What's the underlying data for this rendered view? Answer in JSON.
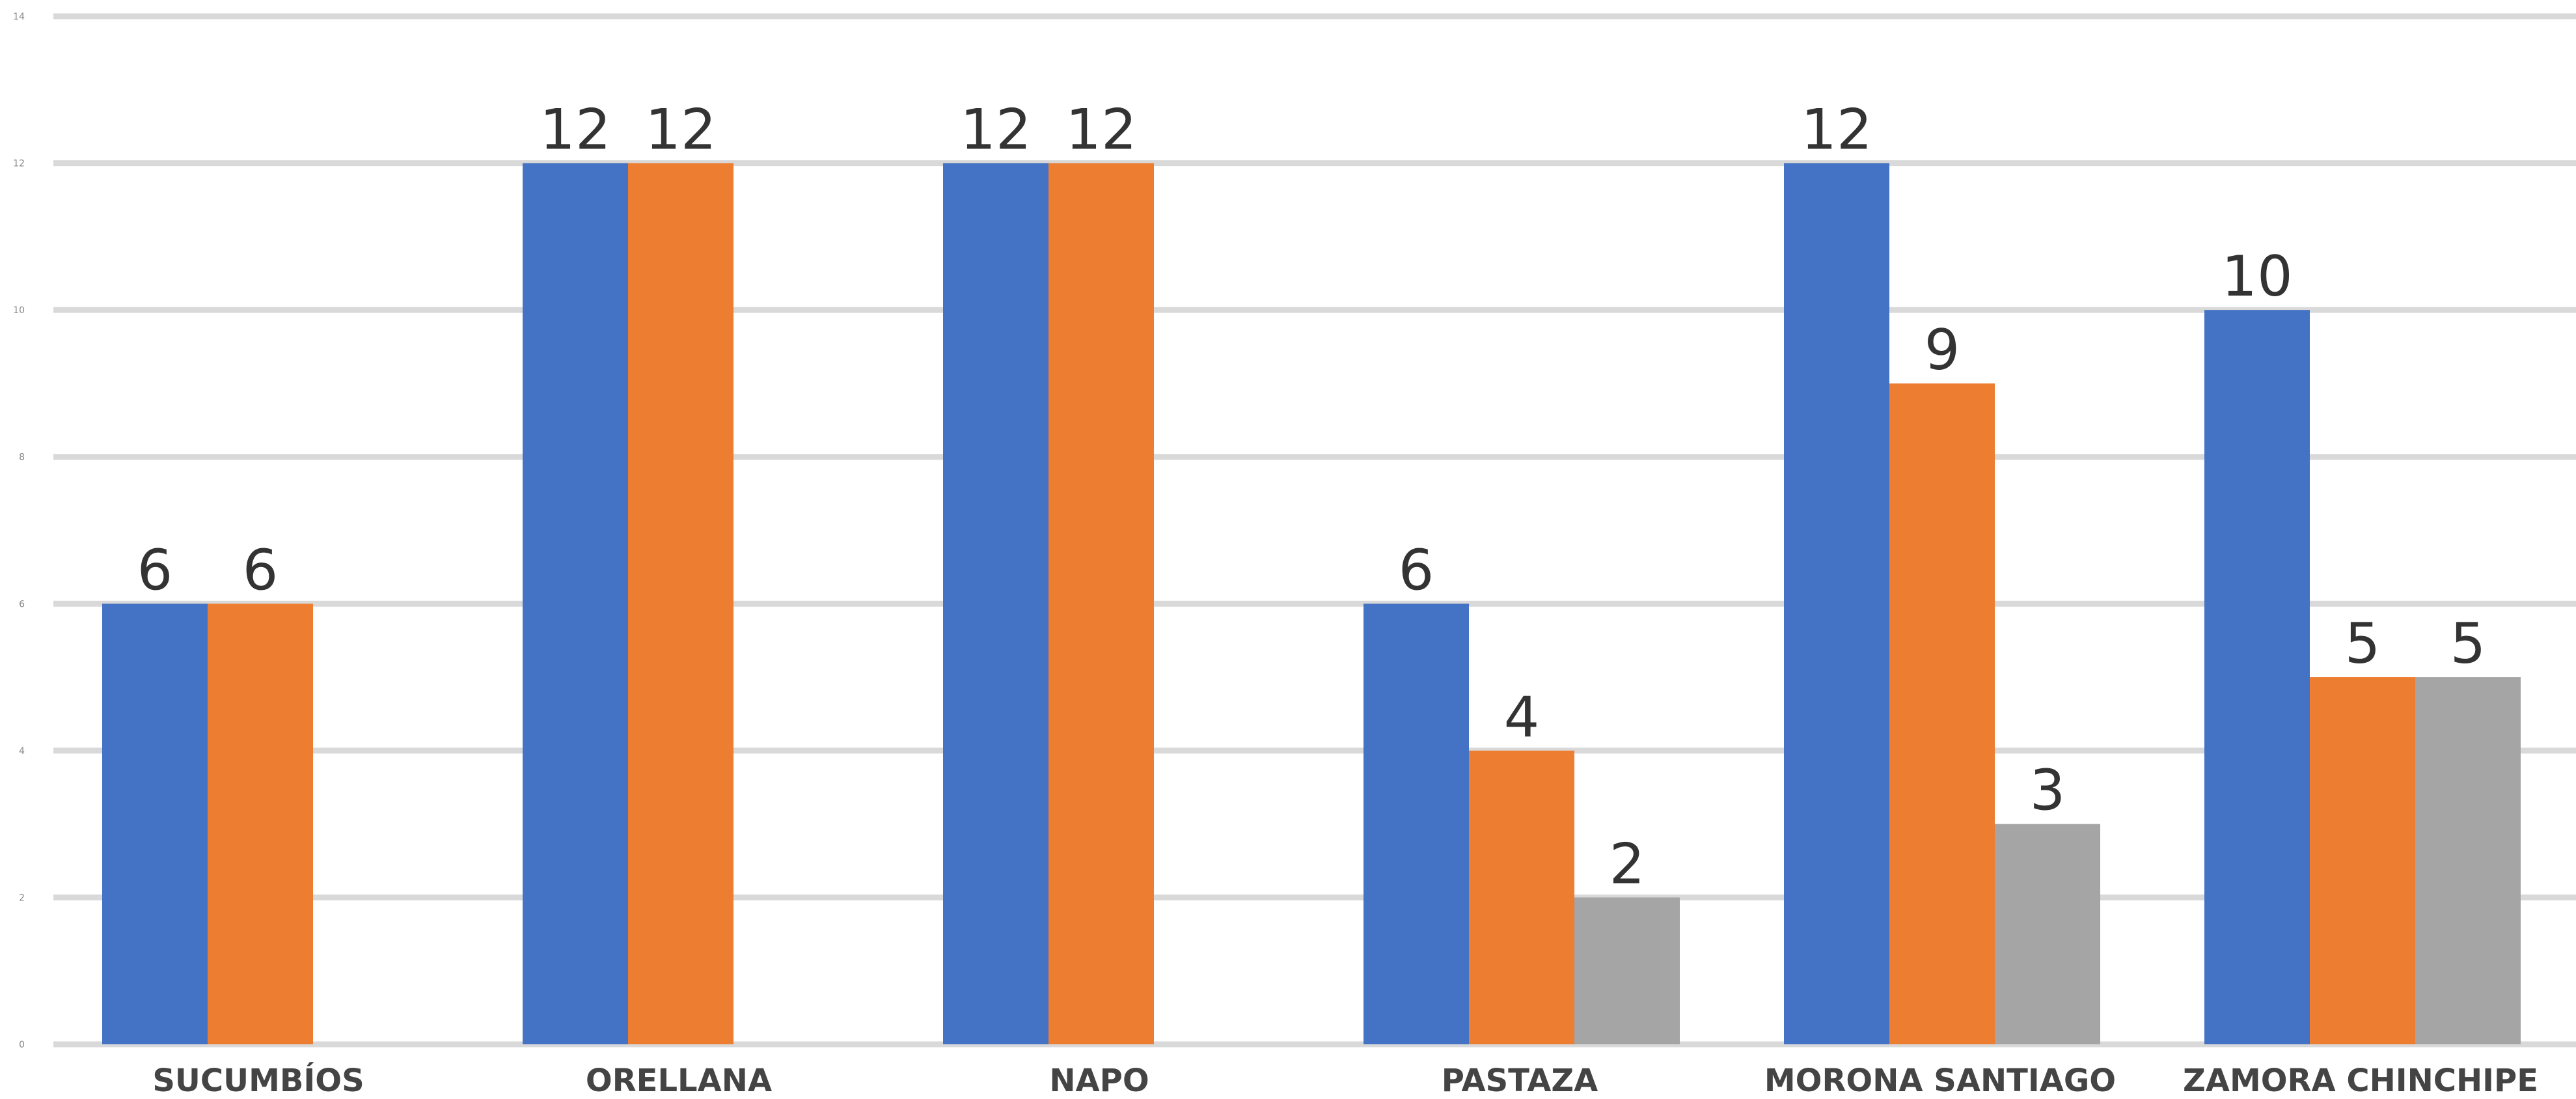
{
  "chart_data": {
    "type": "bar",
    "categories": [
      "SUCUMBÍOS",
      "ORELLANA",
      "NAPO",
      "PASTAZA",
      "MORONA SANTIAGO",
      "ZAMORA CHINCHIPE"
    ],
    "series": [
      {
        "color": "#4472c4",
        "values": [
          6,
          12,
          12,
          6,
          12,
          10
        ]
      },
      {
        "color": "#ed7d31",
        "values": [
          6,
          12,
          12,
          4,
          9,
          5
        ]
      },
      {
        "color": "#a5a5a5",
        "values": [
          null,
          null,
          null,
          2,
          3,
          5
        ]
      }
    ],
    "ylim": [
      0,
      14
    ],
    "yticks": [
      0,
      2,
      4,
      6,
      8,
      10,
      12,
      14
    ],
    "grid": true,
    "data_labels": true,
    "title": "",
    "xlabel": "",
    "ylabel": ""
  }
}
